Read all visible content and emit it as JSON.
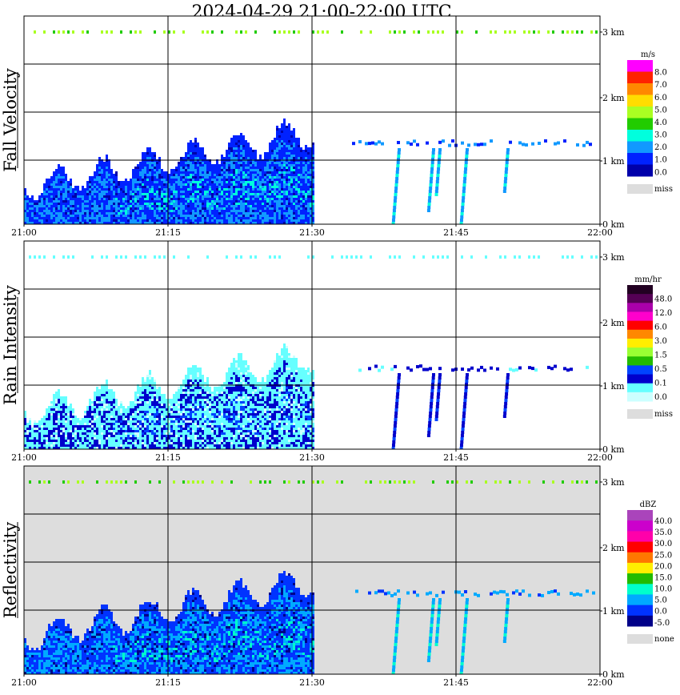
{
  "title": "2024-04-29   21:00-22:00 UTC",
  "time_ticks": [
    "21:00",
    "21:15",
    "21:30",
    "21:45",
    "22:00"
  ],
  "height_ticks": [
    "0 km",
    "1 km",
    "2 km",
    "3 km"
  ],
  "chart_data": [
    {
      "type": "heatmap",
      "ylabel": "Fall Velocity",
      "units": "m/s",
      "background": "#ffffff",
      "x": {
        "start": "21:00",
        "end": "22:00"
      },
      "ylim_km": [
        0,
        3.2
      ],
      "grid": true,
      "colorbar": {
        "labels": [
          "8.0",
          "7.0",
          "6.0",
          "5.0",
          "4.0",
          "3.0",
          "2.0",
          "1.0",
          "0.0"
        ],
        "colors": [
          "#ff00ff",
          "#ff2200",
          "#ff8800",
          "#ffdd00",
          "#aaff22",
          "#22cc00",
          "#00ffdd",
          "#1199ff",
          "#0022ff",
          "#0000aa"
        ],
        "missing_label": "miss",
        "missing_color": "#dddddd"
      }
    },
    {
      "type": "heatmap",
      "ylabel": "Rain Intensity",
      "units": "mm/hr",
      "background": "#ffffff",
      "x": {
        "start": "21:00",
        "end": "22:00"
      },
      "ylim_km": [
        0,
        3.2
      ],
      "grid": true,
      "colorbar": {
        "labels": [
          "48.0",
          "12.0",
          "6.0",
          "3.0",
          "1.5",
          "0.5",
          "0.1",
          "0.0"
        ],
        "colors": [
          "#220022",
          "#550055",
          "#aa00aa",
          "#ff00cc",
          "#ff0000",
          "#ff8800",
          "#ffee00",
          "#99ff33",
          "#22bb00",
          "#0044ff",
          "#0000cc",
          "#66ffff",
          "#ccffff"
        ],
        "missing_label": "miss",
        "missing_color": "#dddddd"
      }
    },
    {
      "type": "heatmap",
      "ylabel": "Reflectivity",
      "units": "dBZ",
      "background": "#dddddd",
      "x": {
        "start": "21:00",
        "end": "22:00"
      },
      "ylim_km": [
        0,
        3.2
      ],
      "grid": true,
      "colorbar": {
        "labels": [
          "40.0",
          "35.0",
          "30.0",
          "25.0",
          "20.0",
          "15.0",
          "10.0",
          "5.0",
          "0.0",
          "-5.0"
        ],
        "colors": [
          "#aa44bb",
          "#cc00cc",
          "#ff00aa",
          "#ff0000",
          "#ff7700",
          "#ffee00",
          "#22bb00",
          "#00ffcc",
          "#00aaff",
          "#0033ff",
          "#000088"
        ],
        "missing_label": "none",
        "missing_color": "#dddddd"
      }
    }
  ]
}
